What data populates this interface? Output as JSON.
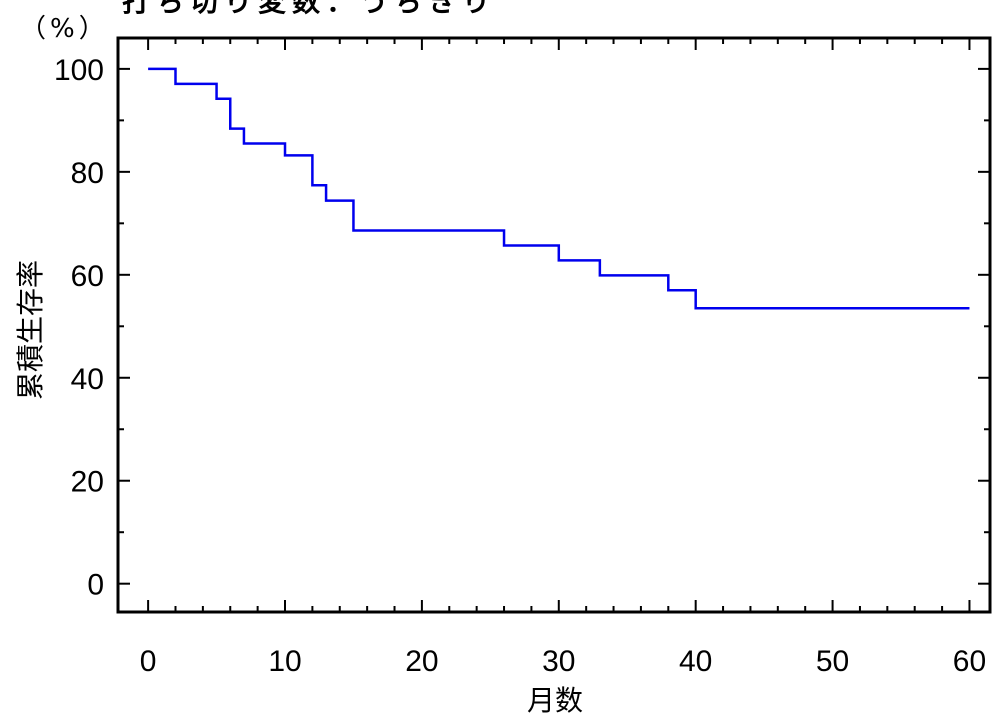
{
  "chart_data": {
    "type": "line",
    "step": true,
    "title": "打ち切り変数：うちきり",
    "unit_label": "（%）",
    "xlabel": "月数",
    "ylabel": "累積生存率",
    "xlim": [
      -2.2,
      61.5
    ],
    "ylim": [
      -5.5,
      106
    ],
    "x_ticks": [
      0,
      10,
      20,
      30,
      40,
      50,
      60
    ],
    "y_ticks": [
      0,
      20,
      40,
      60,
      80,
      100
    ],
    "x_minor_step": 2,
    "y_minor_step": 10,
    "grid": false,
    "series_color": "#0000ee",
    "series": [
      {
        "x": [
          0,
          2,
          5,
          6,
          7,
          10,
          12,
          13,
          15,
          26,
          30,
          33,
          38,
          40,
          60
        ],
        "values": [
          100,
          97.1,
          94.2,
          88.4,
          85.5,
          83.2,
          77.4,
          74.4,
          68.6,
          65.7,
          62.8,
          59.9,
          57.0,
          53.5,
          53.5
        ]
      }
    ]
  }
}
